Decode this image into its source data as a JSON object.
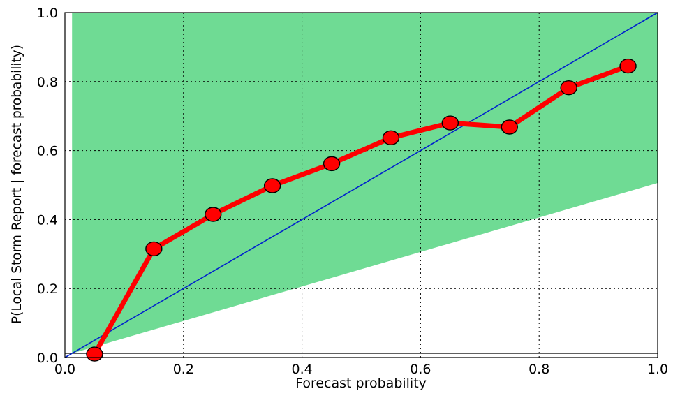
{
  "chart_data": {
    "type": "line",
    "title": "",
    "xlabel": "Forecast probability",
    "ylabel": "P(Local Storm Report | forecast probability)",
    "xlim": [
      0.0,
      1.0
    ],
    "ylim": [
      0.0,
      1.0
    ],
    "grid": true,
    "xticks": [
      "0.0",
      "0.2",
      "0.4",
      "0.6",
      "0.8",
      "1.0"
    ],
    "yticks": [
      "0.0",
      "0.2",
      "0.4",
      "0.6",
      "0.8",
      "1.0"
    ],
    "series": [
      {
        "x": [
          0.05,
          0.15,
          0.25,
          0.35,
          0.45,
          0.55,
          0.65,
          0.75,
          0.85,
          0.95
        ],
        "y": [
          0.01,
          0.315,
          0.415,
          0.498,
          0.562,
          0.637,
          0.68,
          0.668,
          0.782,
          0.845
        ],
        "color": "#ff0000",
        "marker": "circle"
      }
    ],
    "reference_line": {
      "x": [
        0.0,
        1.0
      ],
      "y": [
        0.0,
        1.0
      ],
      "color": "#0022cc"
    },
    "no_skill_level": 0.012,
    "skill_region": {
      "color": "#6fdb94",
      "x": [
        0.012,
        1.0,
        1.0,
        0.012
      ],
      "y": [
        0.012,
        0.506,
        1.0,
        1.0
      ]
    }
  }
}
